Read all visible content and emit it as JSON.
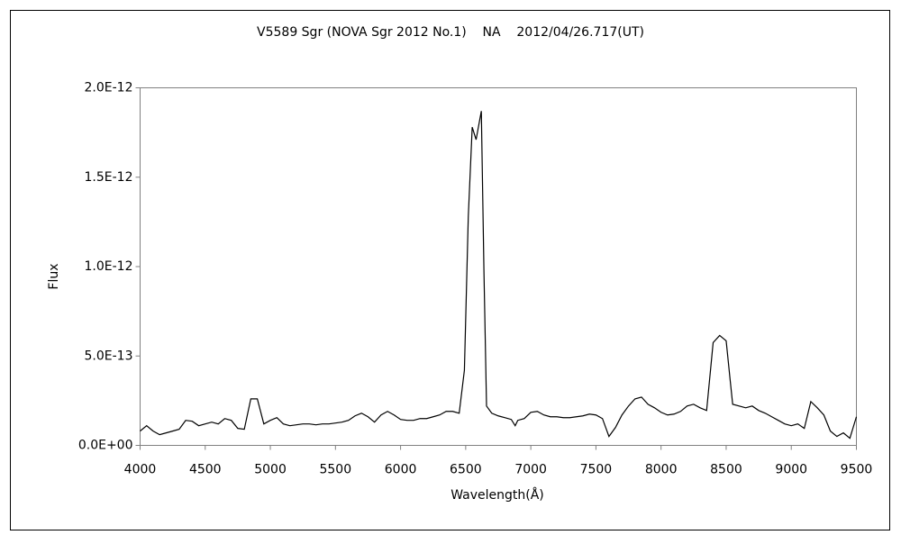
{
  "chart_data": {
    "type": "line",
    "title": "V5589 Sgr (NOVA Sgr 2012 No.1)    NA    2012/04/26.717(UT)",
    "x_label": "Wavelength(Å)",
    "y_label": "Flux",
    "x": [
      4000,
      4050,
      4100,
      4150,
      4200,
      4250,
      4300,
      4350,
      4400,
      4450,
      4500,
      4550,
      4600,
      4650,
      4700,
      4750,
      4800,
      4850,
      4900,
      4950,
      5000,
      5050,
      5100,
      5150,
      5200,
      5250,
      5300,
      5350,
      5400,
      5450,
      5500,
      5550,
      5600,
      5650,
      5700,
      5750,
      5800,
      5850,
      5900,
      5950,
      6000,
      6050,
      6100,
      6150,
      6200,
      6250,
      6300,
      6350,
      6400,
      6450,
      6490,
      6520,
      6550,
      6580,
      6610,
      6620,
      6640,
      6660,
      6700,
      6750,
      6800,
      6850,
      6880,
      6900,
      6950,
      7000,
      7050,
      7100,
      7150,
      7200,
      7250,
      7300,
      7350,
      7400,
      7450,
      7500,
      7550,
      7600,
      7650,
      7700,
      7750,
      7800,
      7850,
      7900,
      7950,
      8000,
      8050,
      8100,
      8150,
      8200,
      8250,
      8300,
      8350,
      8400,
      8450,
      8500,
      8530,
      8550,
      8600,
      8650,
      8700,
      8750,
      8800,
      8850,
      8900,
      8950,
      9000,
      9050,
      9100,
      9150,
      9200,
      9250,
      9300,
      9350,
      9400,
      9450,
      9500
    ],
    "series": [
      {
        "name": "Flux",
        "color": "#000000",
        "values": [
          8e-14,
          1.1e-13,
          8e-14,
          6e-14,
          7e-14,
          8e-14,
          9e-14,
          1.4e-13,
          1.35e-13,
          1.1e-13,
          1.2e-13,
          1.3e-13,
          1.2e-13,
          1.5e-13,
          1.4e-13,
          9.5e-14,
          9e-14,
          2.6e-13,
          2.6e-13,
          1.2e-13,
          1.4e-13,
          1.55e-13,
          1.2e-13,
          1.1e-13,
          1.15e-13,
          1.2e-13,
          1.2e-13,
          1.15e-13,
          1.2e-13,
          1.2e-13,
          1.25e-13,
          1.3e-13,
          1.4e-13,
          1.65e-13,
          1.8e-13,
          1.6e-13,
          1.3e-13,
          1.7e-13,
          1.9e-13,
          1.7e-13,
          1.45e-13,
          1.4e-13,
          1.4e-13,
          1.5e-13,
          1.5e-13,
          1.6e-13,
          1.7e-13,
          1.9e-13,
          1.9e-13,
          1.8e-13,
          4.2e-13,
          1.28e-12,
          1.78e-12,
          1.71e-12,
          1.83e-12,
          1.87e-12,
          9.8e-13,
          2.2e-13,
          1.8e-13,
          1.65e-13,
          1.55e-13,
          1.45e-13,
          1.1e-13,
          1.4e-13,
          1.5e-13,
          1.85e-13,
          1.9e-13,
          1.7e-13,
          1.6e-13,
          1.6e-13,
          1.55e-13,
          1.55e-13,
          1.6e-13,
          1.65e-13,
          1.75e-13,
          1.7e-13,
          1.5e-13,
          5e-14,
          1e-13,
          1.7e-13,
          2.2e-13,
          2.6e-13,
          2.7e-13,
          2.3e-13,
          2.1e-13,
          1.85e-13,
          1.7e-13,
          1.75e-13,
          1.9e-13,
          2.2e-13,
          2.3e-13,
          2.1e-13,
          1.95e-13,
          5.75e-13,
          6.15e-13,
          5.85e-13,
          3.7e-13,
          2.3e-13,
          2.2e-13,
          2.1e-13,
          2.2e-13,
          1.95e-13,
          1.8e-13,
          1.6e-13,
          1.4e-13,
          1.2e-13,
          1.1e-13,
          1.2e-13,
          9.5e-14,
          2.45e-13,
          2.1e-13,
          1.7e-13,
          8e-14,
          5e-14,
          7e-14,
          4e-14,
          1.6e-13
        ]
      }
    ],
    "xlim": [
      4000,
      9500
    ],
    "xticks": [
      4000,
      4500,
      5000,
      5500,
      6000,
      6500,
      7000,
      7500,
      8000,
      8500,
      9000,
      9500
    ],
    "ylim": [
      0,
      2e-12
    ],
    "yticks": [
      {
        "value": 0,
        "label": "0.0E+00"
      },
      {
        "value": 5e-13,
        "label": "5.0E-13"
      },
      {
        "value": 1e-12,
        "label": "1.0E-12"
      },
      {
        "value": 1.5e-12,
        "label": "1.5E-12"
      },
      {
        "value": 2e-12,
        "label": "2.0E-12"
      }
    ],
    "grid": false
  }
}
